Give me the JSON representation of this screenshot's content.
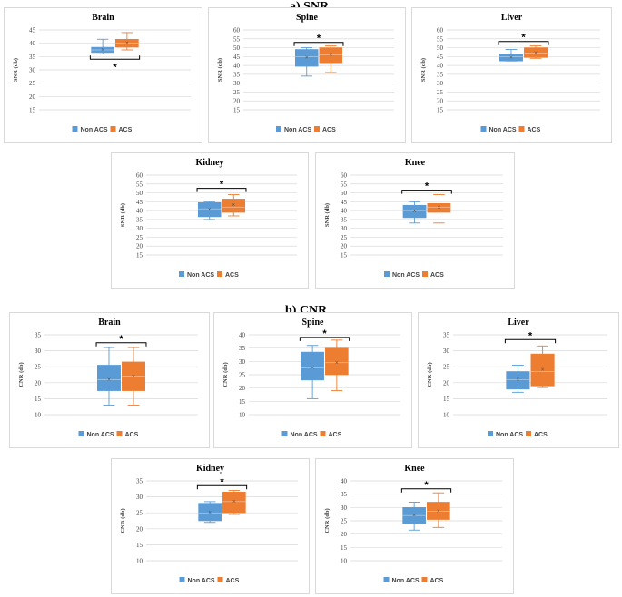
{
  "sections": [
    {
      "title": "a) SNR"
    },
    {
      "title": "b) CNR"
    }
  ],
  "colors": {
    "non_acs": "#5b9bd5",
    "acs": "#ed7d31",
    "grid": "#d9d9d9",
    "bracket": "#000000"
  },
  "legend": {
    "series_1": "Non ACS",
    "series_2": "ACS"
  },
  "significance_mark": "*",
  "chart_data": [
    {
      "type": "box",
      "title": "Brain",
      "ylabel": "SNR (db)",
      "ylim": [
        15,
        45
      ],
      "yticks": [
        15,
        20,
        25,
        30,
        35,
        40,
        45
      ],
      "series": [
        {
          "name": "Non ACS",
          "min": 36,
          "q1": 36.5,
          "median": 37.5,
          "q3": 38.5,
          "max": 41.5,
          "mean": 37.5
        },
        {
          "name": "ACS",
          "min": 37.5,
          "q1": 38.5,
          "median": 40,
          "q3": 41.5,
          "max": 44,
          "mean": 40
        }
      ],
      "significance": {
        "mark": "*",
        "position": "below",
        "level": 34
      }
    },
    {
      "type": "box",
      "title": "Spine",
      "ylabel": "SNR (db)",
      "ylim": [
        15,
        60
      ],
      "yticks": [
        15,
        20,
        25,
        30,
        35,
        40,
        45,
        50,
        55,
        60
      ],
      "series": [
        {
          "name": "Non ACS",
          "min": 34,
          "q1": 39.5,
          "median": 45,
          "q3": 49,
          "max": 50,
          "mean": 44.5
        },
        {
          "name": "ACS",
          "min": 36,
          "q1": 41.5,
          "median": 46,
          "q3": 50,
          "max": 51,
          "mean": 46
        }
      ],
      "significance": {
        "mark": "*",
        "position": "above",
        "level": 53
      }
    },
    {
      "type": "box",
      "title": "Liver",
      "ylabel": "SNR (db)",
      "ylim": [
        15,
        60
      ],
      "yticks": [
        15,
        20,
        25,
        30,
        35,
        40,
        45,
        50,
        55,
        60
      ],
      "series": [
        {
          "name": "Non ACS",
          "min": 42.5,
          "q1": 42.5,
          "median": 45,
          "q3": 46.5,
          "max": 49,
          "mean": 44.5
        },
        {
          "name": "ACS",
          "min": 44,
          "q1": 44.5,
          "median": 47,
          "q3": 50,
          "max": 51,
          "mean": 47
        }
      ],
      "significance": {
        "mark": "*",
        "position": "above",
        "level": 53.5
      }
    },
    {
      "type": "box",
      "title": "Kidney",
      "ylabel": "SNR (db)",
      "ylim": [
        15,
        60
      ],
      "yticks": [
        15,
        20,
        25,
        30,
        35,
        40,
        45,
        50,
        55,
        60
      ],
      "series": [
        {
          "name": "Non ACS",
          "min": 35,
          "q1": 36.5,
          "median": 41,
          "q3": 44.5,
          "max": 45,
          "mean": 40.5
        },
        {
          "name": "ACS",
          "min": 37,
          "q1": 39,
          "median": 42,
          "q3": 46.5,
          "max": 49,
          "mean": 43
        }
      ],
      "significance": {
        "mark": "*",
        "position": "above",
        "level": 52.5
      }
    },
    {
      "type": "box",
      "title": "Knee",
      "ylabel": "SNR (db)",
      "ylim": [
        15,
        60
      ],
      "yticks": [
        15,
        20,
        25,
        30,
        35,
        40,
        45,
        50,
        55,
        60
      ],
      "series": [
        {
          "name": "Non ACS",
          "min": 33,
          "q1": 36,
          "median": 40,
          "q3": 43,
          "max": 45,
          "mean": 39.5
        },
        {
          "name": "ACS",
          "min": 33,
          "q1": 39,
          "median": 42,
          "q3": 44,
          "max": 49,
          "mean": 41.5
        }
      ],
      "significance": {
        "mark": "*",
        "position": "above",
        "level": 51.5
      }
    },
    {
      "type": "box",
      "title": "Brain",
      "ylabel": "CNR (db)",
      "ylim": [
        10,
        35
      ],
      "yticks": [
        10,
        15,
        20,
        25,
        30,
        35
      ],
      "series": [
        {
          "name": "Non ACS",
          "min": 13,
          "q1": 17.5,
          "median": 21,
          "q3": 25.5,
          "max": 31,
          "mean": 21
        },
        {
          "name": "ACS",
          "min": 13,
          "q1": 17.5,
          "median": 22,
          "q3": 26.5,
          "max": 31,
          "mean": 22
        }
      ],
      "significance": {
        "mark": "*",
        "position": "above",
        "level": 32.5
      }
    },
    {
      "type": "box",
      "title": "Spine",
      "ylabel": "CNR (db)",
      "ylim": [
        10,
        40
      ],
      "yticks": [
        10,
        15,
        20,
        25,
        30,
        35,
        40
      ],
      "series": [
        {
          "name": "Non ACS",
          "min": 16,
          "q1": 23,
          "median": 27.5,
          "q3": 33.5,
          "max": 36,
          "mean": 27.5
        },
        {
          "name": "ACS",
          "min": 19,
          "q1": 25,
          "median": 29.5,
          "q3": 35,
          "max": 38,
          "mean": 29.5
        }
      ],
      "significance": {
        "mark": "*",
        "position": "above",
        "level": 39
      }
    },
    {
      "type": "box",
      "title": "Liver",
      "ylabel": "CNR (db)",
      "ylim": [
        10,
        35
      ],
      "yticks": [
        10,
        15,
        20,
        25,
        30,
        35
      ],
      "series": [
        {
          "name": "Non ACS",
          "min": 17,
          "q1": 18,
          "median": 21,
          "q3": 23.5,
          "max": 25.5,
          "mean": 21
        },
        {
          "name": "ACS",
          "min": 18.5,
          "q1": 19,
          "median": 23.5,
          "q3": 29,
          "max": 31.5,
          "mean": 24
        }
      ],
      "significance": {
        "mark": "*",
        "position": "above",
        "level": 33.5
      }
    },
    {
      "type": "box",
      "title": "Kidney",
      "ylabel": "CNR (db)",
      "ylim": [
        10,
        35
      ],
      "yticks": [
        10,
        15,
        20,
        25,
        30,
        35
      ],
      "series": [
        {
          "name": "Non ACS",
          "min": 22,
          "q1": 22.5,
          "median": 25,
          "q3": 28,
          "max": 28.5,
          "mean": 25
        },
        {
          "name": "ACS",
          "min": 24.5,
          "q1": 25,
          "median": 28.5,
          "q3": 31.5,
          "max": 32,
          "mean": 28.5
        }
      ],
      "significance": {
        "mark": "*",
        "position": "above",
        "level": 33.5
      }
    },
    {
      "type": "box",
      "title": "Knee",
      "ylabel": "CNR (db)",
      "ylim": [
        10,
        40
      ],
      "yticks": [
        10,
        15,
        20,
        25,
        30,
        35,
        40
      ],
      "series": [
        {
          "name": "Non ACS",
          "min": 21.5,
          "q1": 24,
          "median": 27,
          "q3": 30,
          "max": 32,
          "mean": 27
        },
        {
          "name": "ACS",
          "min": 22.5,
          "q1": 25.5,
          "median": 28.5,
          "q3": 32,
          "max": 35.5,
          "mean": 28.5
        }
      ],
      "significance": {
        "mark": "*",
        "position": "above",
        "level": 37
      }
    }
  ]
}
